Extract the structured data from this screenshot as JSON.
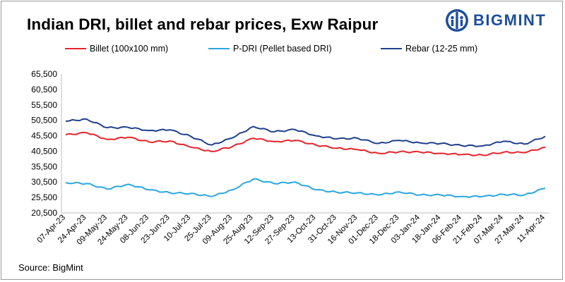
{
  "header": {
    "title": "Indian DRI, billet and rebar prices, Exw Raipur",
    "logo_text": "BIGMINT"
  },
  "footer": {
    "source": "Source: BigMint"
  },
  "colors": {
    "billet": "#e8232a",
    "pdri": "#2aa7e0",
    "rebar": "#1f3f8c",
    "brand": "#1f4e9c"
  },
  "chart_data": {
    "type": "line",
    "title": "Indian DRI, billet and rebar prices, Exw Raipur",
    "xlabel": "",
    "ylabel": "",
    "ylim": [
      20500,
      65500
    ],
    "yticks": [
      20500,
      25500,
      30500,
      35500,
      40500,
      45500,
      50500,
      55500,
      60500,
      65500
    ],
    "ytick_labels": [
      "20,500",
      "25,500",
      "30,500",
      "35,500",
      "40,500",
      "45,500",
      "50,500",
      "55,500",
      "60,500",
      "65,500"
    ],
    "grid": false,
    "legend_position": "top",
    "x": [
      "07-Apr-23",
      "24-Apr-23",
      "09-May-23",
      "24-May-23",
      "08-Jun-23",
      "23-Jun-23",
      "10-Jul-23",
      "25-Jul-23",
      "09-Aug-23",
      "25-Aug-23",
      "12-Sep-23",
      "27-Sep-23",
      "13-Oct-23",
      "31-Oct-23",
      "16-Nov-23",
      "01-Dec-23",
      "18-Dec-23",
      "03-Jan-24",
      "18-Jan-24",
      "06-Feb-24",
      "21-Feb-24",
      "07-Mar-24",
      "27-Mar-24",
      "11-Apr-24"
    ],
    "series": [
      {
        "name": "Billet (100x100 mm)",
        "values": [
          45800,
          46500,
          44300,
          45000,
          43500,
          43800,
          41800,
          40400,
          42000,
          44700,
          43600,
          44000,
          42500,
          41500,
          41000,
          39800,
          40300,
          40200,
          39800,
          39400,
          39200,
          40200,
          40000,
          41800
        ]
      },
      {
        "name": "P-DRI (Pellet based DRI)",
        "values": [
          30300,
          30000,
          28200,
          29800,
          28000,
          27000,
          26800,
          25800,
          28000,
          31500,
          30000,
          30500,
          28000,
          27200,
          27000,
          26300,
          27300,
          26300,
          26300,
          25800,
          25800,
          26500,
          26300,
          28500
        ]
      },
      {
        "name": "Rebar (12-25 mm)",
        "values": [
          50200,
          50900,
          48100,
          48200,
          47200,
          47400,
          45300,
          42500,
          44800,
          48500,
          46800,
          47500,
          45500,
          44500,
          44700,
          43000,
          44000,
          43200,
          43000,
          42300,
          42200,
          43700,
          42800,
          45300
        ]
      }
    ]
  }
}
